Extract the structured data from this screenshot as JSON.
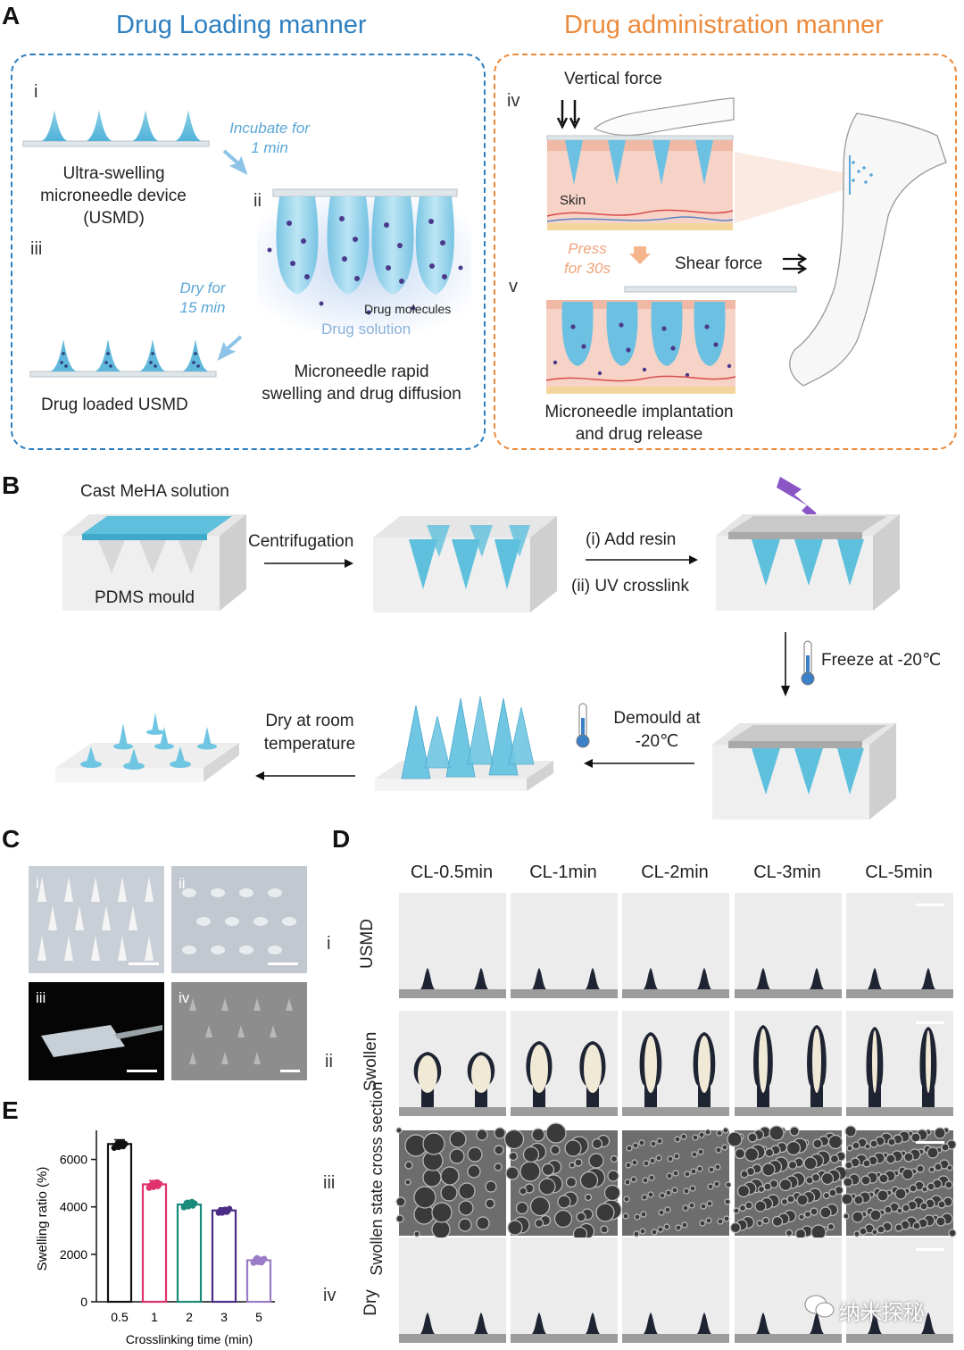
{
  "panels": {
    "a": "A",
    "b": "B",
    "c": "C",
    "d": "D",
    "e": "E"
  },
  "panel_a": {
    "left_title": "Drug Loading manner",
    "right_title": "Drug administration manner",
    "left_color": "#2d7fc0",
    "right_color": "#ec8a3c",
    "step_i": "i",
    "step_ii": "ii",
    "step_iii": "iii",
    "step_iv": "iv",
    "step_v": "v",
    "usmd_label": [
      "Ultra-swelling",
      "microneedle device",
      "(USMD)"
    ],
    "incubate": [
      "Incubate for",
      "1 min"
    ],
    "dry": [
      "Dry for",
      "15 min"
    ],
    "drug_loaded": "Drug loaded  USMD",
    "drug_molecules": "Drug molecules",
    "drug_solution": "Drug solution",
    "rapid_swelling": [
      "Microneedle rapid",
      "swelling and drug diffusion"
    ],
    "vertical_force": "Vertical force",
    "skin": "Skin",
    "press": [
      "Press",
      "for 30s"
    ],
    "shear_force": "Shear force",
    "implantation": [
      "Microneedle implantation",
      "and drug release"
    ]
  },
  "panel_b": {
    "cast": "Cast MeHA solution",
    "pdms": "PDMS mould",
    "centrifugation": "Centrifugation",
    "add_resin": "(i) Add resin",
    "uv": "(ii) UV crosslink",
    "freeze": "Freeze at -20℃",
    "demould": [
      "Demould at",
      "-20℃"
    ],
    "dry_room": [
      "Dry at room",
      "temperature"
    ]
  },
  "panel_c": {
    "labels": [
      "i",
      "ii",
      "iii",
      "iv"
    ]
  },
  "panel_d": {
    "columns": [
      "CL-0.5min",
      "CL-1min",
      "CL-2min",
      "CL-3min",
      "CL-5min"
    ],
    "rows": [
      {
        "roman": "i",
        "label": "USMD"
      },
      {
        "roman": "ii",
        "label": "Swollen"
      },
      {
        "roman": "iii",
        "label": "Swollen state cross section"
      },
      {
        "roman": "iv",
        "label": "Dry"
      }
    ]
  },
  "watermark": "纳米探秘",
  "chart_data": {
    "type": "bar",
    "categories": [
      "0.5",
      "1",
      "2",
      "3",
      "5"
    ],
    "values": [
      6650,
      4950,
      4100,
      3850,
      1750
    ],
    "colors": [
      "#111111",
      "#e0336b",
      "#1a8a7a",
      "#4b2c86",
      "#9a7bc6"
    ],
    "xlabel": "Crosslinking time (min)",
    "ylabel": "Swelling ratio (%)",
    "ylim": [
      0,
      7000
    ],
    "yticks": [
      "0",
      "2000",
      "4000",
      "6000"
    ],
    "error": [
      180,
      160,
      130,
      110,
      120
    ]
  }
}
